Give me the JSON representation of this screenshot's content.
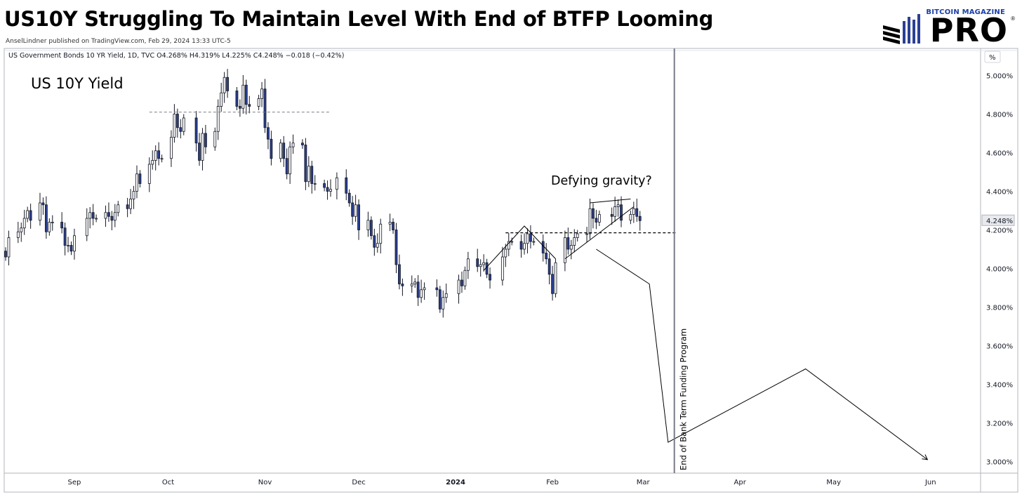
{
  "header": {
    "title": "US10Y Struggling To Maintain Level With End of BTFP Looming",
    "byline": "AnselLindner published on TradingView.com, Feb 29, 2024 13:33 UTC-5"
  },
  "brand": {
    "top": "BITCOIN MAGAZINE",
    "main": "PRO",
    "reg": "®"
  },
  "chart_data": {
    "type": "candlestick",
    "symbol_line": "US Government Bonds 10 YR Yield, 1D, TVC  O4.268%  H4.319%  L4.225%  C4.248%  −0.018 (−0.42%)",
    "panel_title": "US 10Y Yield",
    "unit_button": "%",
    "last_price_label": "4.248%",
    "y_ticks": [
      "5.000%",
      "4.800%",
      "4.600%",
      "4.400%",
      "4.200%",
      "4.000%",
      "3.800%",
      "3.600%",
      "3.400%",
      "3.200%",
      "3.000%"
    ],
    "y_tick_values": [
      5.0,
      4.8,
      4.6,
      4.4,
      4.2,
      4.0,
      3.8,
      3.6,
      3.4,
      3.2,
      3.0
    ],
    "ylim": [
      2.94,
      5.14
    ],
    "x_ticks": [
      {
        "label": "Sep",
        "date": "2023-09-01",
        "bold": false
      },
      {
        "label": "Oct",
        "date": "2023-10-01",
        "bold": false
      },
      {
        "label": "Nov",
        "date": "2023-11-01",
        "bold": false
      },
      {
        "label": "Dec",
        "date": "2023-12-01",
        "bold": false
      },
      {
        "label": "2024",
        "date": "2024-01-01",
        "bold": true
      },
      {
        "label": "Feb",
        "date": "2024-02-01",
        "bold": false
      },
      {
        "label": "Mar",
        "date": "2024-03-01",
        "bold": false
      },
      {
        "label": "Apr",
        "date": "2024-04-01",
        "bold": false
      },
      {
        "label": "May",
        "date": "2024-05-01",
        "bold": false
      },
      {
        "label": "Jun",
        "date": "2024-06-01",
        "bold": false
      }
    ],
    "xlim": [
      "2023-08-10",
      "2024-06-17"
    ],
    "candles": [
      {
        "date": "2023-08-10",
        "close": 4.06
      },
      {
        "date": "2023-08-11",
        "close": 4.16
      },
      {
        "date": "2023-08-14",
        "close": 4.19
      },
      {
        "date": "2023-08-15",
        "close": 4.21
      },
      {
        "date": "2023-08-16",
        "close": 4.26
      },
      {
        "date": "2023-08-17",
        "close": 4.3
      },
      {
        "date": "2023-08-18",
        "close": 4.25
      },
      {
        "date": "2023-08-21",
        "close": 4.34
      },
      {
        "date": "2023-08-22",
        "close": 4.33
      },
      {
        "date": "2023-08-23",
        "close": 4.19
      },
      {
        "date": "2023-08-24",
        "close": 4.24
      },
      {
        "date": "2023-08-25",
        "close": 4.24
      },
      {
        "date": "2023-08-28",
        "close": 4.21
      },
      {
        "date": "2023-08-29",
        "close": 4.12
      },
      {
        "date": "2023-08-30",
        "close": 4.12
      },
      {
        "date": "2023-08-31",
        "close": 4.09
      },
      {
        "date": "2023-09-01",
        "close": 4.17
      },
      {
        "date": "2023-09-05",
        "close": 4.26
      },
      {
        "date": "2023-09-06",
        "close": 4.29
      },
      {
        "date": "2023-09-07",
        "close": 4.26
      },
      {
        "date": "2023-09-08",
        "close": 4.26
      },
      {
        "date": "2023-09-11",
        "close": 4.29
      },
      {
        "date": "2023-09-12",
        "close": 4.27
      },
      {
        "date": "2023-09-13",
        "close": 4.25
      },
      {
        "date": "2023-09-14",
        "close": 4.29
      },
      {
        "date": "2023-09-15",
        "close": 4.33
      },
      {
        "date": "2023-09-18",
        "close": 4.31
      },
      {
        "date": "2023-09-19",
        "close": 4.36
      },
      {
        "date": "2023-09-20",
        "close": 4.4
      },
      {
        "date": "2023-09-21",
        "close": 4.49
      },
      {
        "date": "2023-09-22",
        "close": 4.44
      },
      {
        "date": "2023-09-25",
        "close": 4.54
      },
      {
        "date": "2023-09-26",
        "close": 4.56
      },
      {
        "date": "2023-09-27",
        "close": 4.61
      },
      {
        "date": "2023-09-28",
        "close": 4.57
      },
      {
        "date": "2023-09-29",
        "close": 4.57
      },
      {
        "date": "2023-10-02",
        "close": 4.68
      },
      {
        "date": "2023-10-03",
        "close": 4.8
      },
      {
        "date": "2023-10-04",
        "close": 4.73
      },
      {
        "date": "2023-10-05",
        "close": 4.71
      },
      {
        "date": "2023-10-06",
        "close": 4.78
      },
      {
        "date": "2023-10-10",
        "close": 4.65
      },
      {
        "date": "2023-10-11",
        "close": 4.56
      },
      {
        "date": "2023-10-12",
        "close": 4.7
      },
      {
        "date": "2023-10-13",
        "close": 4.63
      },
      {
        "date": "2023-10-16",
        "close": 4.71
      },
      {
        "date": "2023-10-17",
        "close": 4.84
      },
      {
        "date": "2023-10-18",
        "close": 4.91
      },
      {
        "date": "2023-10-19",
        "close": 4.99
      },
      {
        "date": "2023-10-20",
        "close": 4.92
      },
      {
        "date": "2023-10-23",
        "close": 4.84
      },
      {
        "date": "2023-10-24",
        "close": 4.83
      },
      {
        "date": "2023-10-25",
        "close": 4.95
      },
      {
        "date": "2023-10-26",
        "close": 4.85
      },
      {
        "date": "2023-10-27",
        "close": 4.84
      },
      {
        "date": "2023-10-30",
        "close": 4.88
      },
      {
        "date": "2023-10-31",
        "close": 4.93
      },
      {
        "date": "2023-11-01",
        "close": 4.73
      },
      {
        "date": "2023-11-02",
        "close": 4.67
      },
      {
        "date": "2023-11-03",
        "close": 4.57
      },
      {
        "date": "2023-11-06",
        "close": 4.65
      },
      {
        "date": "2023-11-07",
        "close": 4.57
      },
      {
        "date": "2023-11-08",
        "close": 4.49
      },
      {
        "date": "2023-11-09",
        "close": 4.63
      },
      {
        "date": "2023-11-10",
        "close": 4.65
      },
      {
        "date": "2023-11-13",
        "close": 4.64
      },
      {
        "date": "2023-11-14",
        "close": 4.45
      },
      {
        "date": "2023-11-15",
        "close": 4.53
      },
      {
        "date": "2023-11-16",
        "close": 4.44
      },
      {
        "date": "2023-11-17",
        "close": 4.44
      },
      {
        "date": "2023-11-20",
        "close": 4.42
      },
      {
        "date": "2023-11-21",
        "close": 4.4
      },
      {
        "date": "2023-11-22",
        "close": 4.41
      },
      {
        "date": "2023-11-24",
        "close": 4.47
      },
      {
        "date": "2023-11-27",
        "close": 4.39
      },
      {
        "date": "2023-11-28",
        "close": 4.34
      },
      {
        "date": "2023-11-29",
        "close": 4.27
      },
      {
        "date": "2023-11-30",
        "close": 4.33
      },
      {
        "date": "2023-12-01",
        "close": 4.2
      },
      {
        "date": "2023-12-04",
        "close": 4.25
      },
      {
        "date": "2023-12-05",
        "close": 4.17
      },
      {
        "date": "2023-12-06",
        "close": 4.11
      },
      {
        "date": "2023-12-07",
        "close": 4.13
      },
      {
        "date": "2023-12-08",
        "close": 4.23
      },
      {
        "date": "2023-12-11",
        "close": 4.24
      },
      {
        "date": "2023-12-12",
        "close": 4.2
      },
      {
        "date": "2023-12-13",
        "close": 4.02
      },
      {
        "date": "2023-12-14",
        "close": 3.92
      },
      {
        "date": "2023-12-15",
        "close": 3.91
      },
      {
        "date": "2023-12-18",
        "close": 3.92
      },
      {
        "date": "2023-12-19",
        "close": 3.93
      },
      {
        "date": "2023-12-20",
        "close": 3.85
      },
      {
        "date": "2023-12-21",
        "close": 3.89
      },
      {
        "date": "2023-12-22",
        "close": 3.9
      },
      {
        "date": "2023-12-26",
        "close": 3.89
      },
      {
        "date": "2023-12-27",
        "close": 3.79
      },
      {
        "date": "2023-12-28",
        "close": 3.85
      },
      {
        "date": "2023-12-29",
        "close": 3.87
      },
      {
        "date": "2024-01-02",
        "close": 3.94
      },
      {
        "date": "2024-01-03",
        "close": 3.91
      },
      {
        "date": "2024-01-04",
        "close": 3.99
      },
      {
        "date": "2024-01-05",
        "close": 4.05
      },
      {
        "date": "2024-01-08",
        "close": 4.01
      },
      {
        "date": "2024-01-09",
        "close": 4.02
      },
      {
        "date": "2024-01-10",
        "close": 4.03
      },
      {
        "date": "2024-01-11",
        "close": 3.97
      },
      {
        "date": "2024-01-12",
        "close": 3.94
      },
      {
        "date": "2024-01-16",
        "close": 4.06
      },
      {
        "date": "2024-01-17",
        "close": 4.1
      },
      {
        "date": "2024-01-18",
        "close": 4.14
      },
      {
        "date": "2024-01-19",
        "close": 4.14
      },
      {
        "date": "2024-01-22",
        "close": 4.1
      },
      {
        "date": "2024-01-23",
        "close": 4.13
      },
      {
        "date": "2024-01-24",
        "close": 4.18
      },
      {
        "date": "2024-01-25",
        "close": 4.14
      },
      {
        "date": "2024-01-26",
        "close": 4.14
      },
      {
        "date": "2024-01-29",
        "close": 4.08
      },
      {
        "date": "2024-01-30",
        "close": 4.05
      },
      {
        "date": "2024-01-31",
        "close": 3.97
      },
      {
        "date": "2024-02-01",
        "close": 3.87
      },
      {
        "date": "2024-02-02",
        "close": 4.03
      },
      {
        "date": "2024-02-05",
        "close": 4.16
      },
      {
        "date": "2024-02-06",
        "close": 4.1
      },
      {
        "date": "2024-02-07",
        "close": 4.12
      },
      {
        "date": "2024-02-08",
        "close": 4.16
      },
      {
        "date": "2024-02-09",
        "close": 4.18
      },
      {
        "date": "2024-02-12",
        "close": 4.18
      },
      {
        "date": "2024-02-13",
        "close": 4.31
      },
      {
        "date": "2024-02-14",
        "close": 4.26
      },
      {
        "date": "2024-02-15",
        "close": 4.24
      },
      {
        "date": "2024-02-16",
        "close": 4.28
      },
      {
        "date": "2024-02-20",
        "close": 4.27
      },
      {
        "date": "2024-02-21",
        "close": 4.32
      },
      {
        "date": "2024-02-22",
        "close": 4.33
      },
      {
        "date": "2024-02-23",
        "close": 4.25
      },
      {
        "date": "2024-02-26",
        "close": 4.28
      },
      {
        "date": "2024-02-27",
        "close": 4.31
      },
      {
        "date": "2024-02-28",
        "close": 4.27
      },
      {
        "date": "2024-02-29",
        "close": 4.248
      }
    ],
    "annotations": {
      "defying_label": "Defying gravity?",
      "btfp_label": "End of Bank Term Funding Program",
      "btfp_date": "2024-03-11",
      "resistance_level": 4.81,
      "support_level": 4.185,
      "projection": [
        {
          "date": "2024-02-15",
          "value": 4.1
        },
        {
          "date": "2024-03-03",
          "value": 3.92
        },
        {
          "date": "2024-03-09",
          "value": 3.1
        },
        {
          "date": "2024-04-22",
          "value": 3.48
        },
        {
          "date": "2024-05-31",
          "value": 3.01
        }
      ],
      "jan_line": [
        {
          "date": "2024-01-10",
          "value": 3.99
        },
        {
          "date": "2024-01-23",
          "value": 4.22
        },
        {
          "date": "2024-02-02",
          "value": 4.05
        }
      ],
      "wedge_top": [
        {
          "date": "2024-02-13",
          "value": 4.34
        },
        {
          "date": "2024-02-26",
          "value": 4.36
        }
      ],
      "wedge_bottom": [
        {
          "date": "2024-02-05",
          "value": 4.05
        },
        {
          "date": "2024-02-27",
          "value": 4.32
        }
      ]
    },
    "colors": {
      "bull_fill": "#ffffff",
      "bear_fill": "#2b3f91",
      "candle_stroke": "#131722",
      "grid_border": "#d1d4dc",
      "annotation": "#000000"
    }
  }
}
